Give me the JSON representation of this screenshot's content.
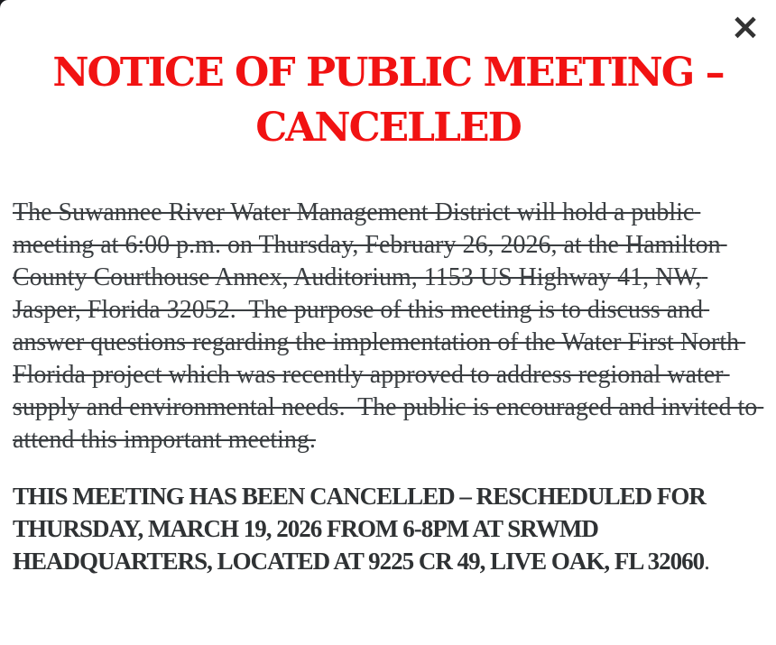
{
  "colors": {
    "overlay_background": "#17181c",
    "modal_background": "#ffffff",
    "heading_red": "#f11212",
    "body_text": "#3a3e41",
    "bold_text": "#2f3234",
    "close_icon_color": "#333333"
  },
  "modal": {
    "close_icon": "×",
    "heading": "NOTICE OF PUBLIC MEETING – CANCELLED",
    "cancelled_notice": {
      "strikethrough": true,
      "text": "The Suwannee River Water Management District will hold a public meeting at 6:00 p.m. on Thursday, February 26, 2026, at the Hamilton County Courthouse Annex, Auditorium, 1153 US Highway 41, NW, Jasper, Florida 32052.  The purpose of this meeting is to discuss and answer questions regarding the implementation of the Water First North Florida project which was recently approved to address regional water supply and environmental needs.  The public is encouraged and invited to attend this important meeting."
    },
    "reschedule_notice": {
      "bold_text": "THIS MEETING HAS BEEN CANCELLED – RESCHEDULED FOR THURSDAY, MARCH 19, 2026 FROM 6-8PM AT SRWMD HEADQUARTERS, LOCATED AT 9225 CR 49, LIVE OAK, FL 32060",
      "suffix": "."
    }
  }
}
